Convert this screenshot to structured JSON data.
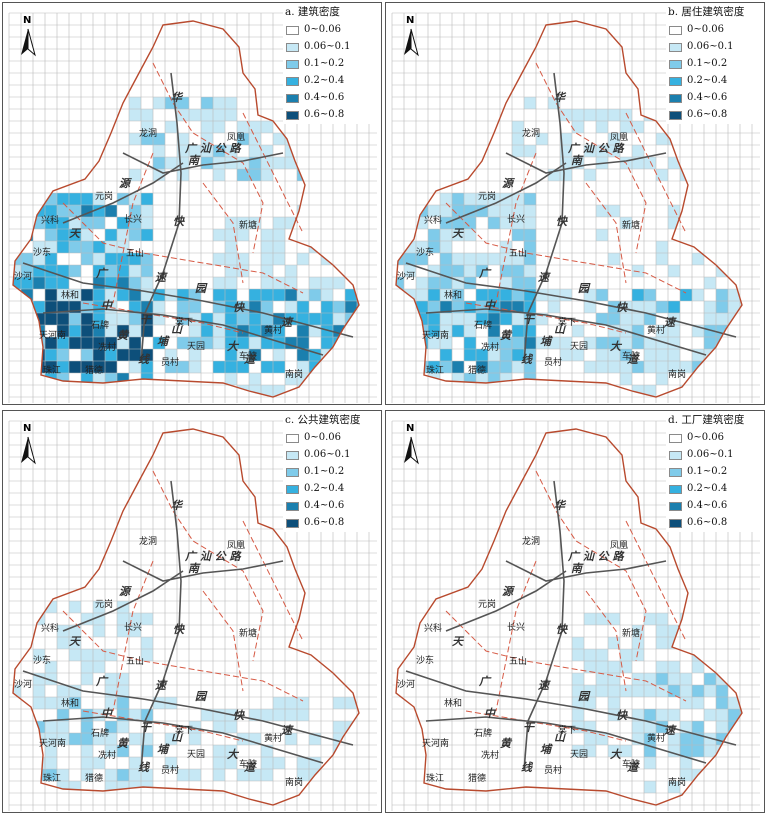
{
  "colors": {
    "classes": [
      "#ffffff",
      "#c6e8f5",
      "#7fcbea",
      "#35b1e0",
      "#1b7fae",
      "#0d4f7a"
    ],
    "boundary": "#b84a2e",
    "district": "#d65a45",
    "road": "#555555",
    "grid": "#b9b9b9"
  },
  "legend_labels": [
    "0~0.06",
    "0.06~0.1",
    "0.1~0.2",
    "0.2~0.4",
    "0.4~0.6",
    "0.6~0.8"
  ],
  "north_label": "N",
  "panels": [
    {
      "title": "a. 建筑密度",
      "density": 1.0,
      "industrial": false
    },
    {
      "title": "b. 居住建筑密度",
      "density": 0.62,
      "industrial": false
    },
    {
      "title": "c. 公共建筑密度",
      "density": 0.34,
      "industrial": false
    },
    {
      "title": "d. 工厂建筑密度",
      "density": 0.45,
      "industrial": true
    }
  ],
  "places": {
    "longdong": "龙洞",
    "fenghuang": "凤凰",
    "yuangang": "元岗",
    "xingke": "兴科",
    "changxing": "长兴",
    "xintang": "新塘",
    "shadong": "沙东",
    "wushan": "五山",
    "shahe": "沙河",
    "linhe": "林和",
    "tianhenan": "天河南",
    "shipai": "石牌",
    "tangxia": "棠下",
    "huangcun": "黄村",
    "xiancun": "冼村",
    "tianyuan": "天园",
    "yuancun": "员村",
    "chepo": "车陂",
    "liede": "猎德",
    "nangang": "南岗",
    "zhujiang": "珠江"
  },
  "roads": {
    "hua": "华",
    "nan": "南",
    "kuai": "快",
    "guang": "广",
    "su": "速",
    "yuan": "园",
    "gan": "干",
    "xian": "线",
    "zhong": "中",
    "shan": "山",
    "da": "大",
    "dao": "道",
    "huang": "黄",
    "pu": "埔",
    "guangshan": "广 汕 公 路",
    "tian": "天",
    "yuan2": "源"
  }
}
